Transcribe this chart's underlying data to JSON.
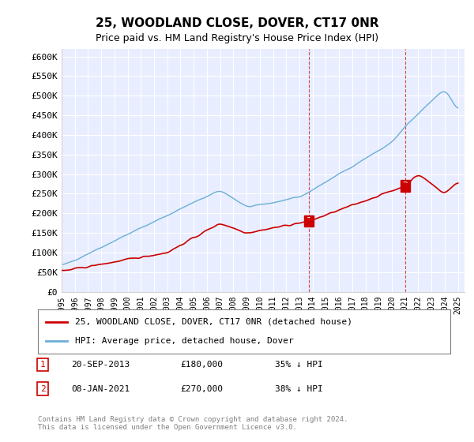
{
  "title": "25, WOODLAND CLOSE, DOVER, CT17 0NR",
  "subtitle": "Price paid vs. HM Land Registry's House Price Index (HPI)",
  "ylabel_ticks": [
    "£0",
    "£50K",
    "£100K",
    "£150K",
    "£200K",
    "£250K",
    "£300K",
    "£350K",
    "£400K",
    "£450K",
    "£500K",
    "£550K",
    "£600K"
  ],
  "ytick_values": [
    0,
    50000,
    100000,
    150000,
    200000,
    250000,
    300000,
    350000,
    400000,
    450000,
    500000,
    550000,
    600000
  ],
  "ylim": [
    0,
    620000
  ],
  "legend_line1": "25, WOODLAND CLOSE, DOVER, CT17 0NR (detached house)",
  "legend_line2": "HPI: Average price, detached house, Dover",
  "annotation1_label": "1",
  "annotation1_date": "20-SEP-2013",
  "annotation1_price": "£180,000",
  "annotation1_hpi": "35% ↓ HPI",
  "annotation2_label": "2",
  "annotation2_date": "08-JAN-2021",
  "annotation2_price": "£270,000",
  "annotation2_hpi": "38% ↓ HPI",
  "footnote": "Contains HM Land Registry data © Crown copyright and database right 2024.\nThis data is licensed under the Open Government Licence v3.0.",
  "hpi_color": "#6baed6",
  "price_color": "#cc0000",
  "annotation_vline_color": "#cc0000",
  "background_color": "#f0f4ff",
  "plot_bg_color": "#e8eeff"
}
